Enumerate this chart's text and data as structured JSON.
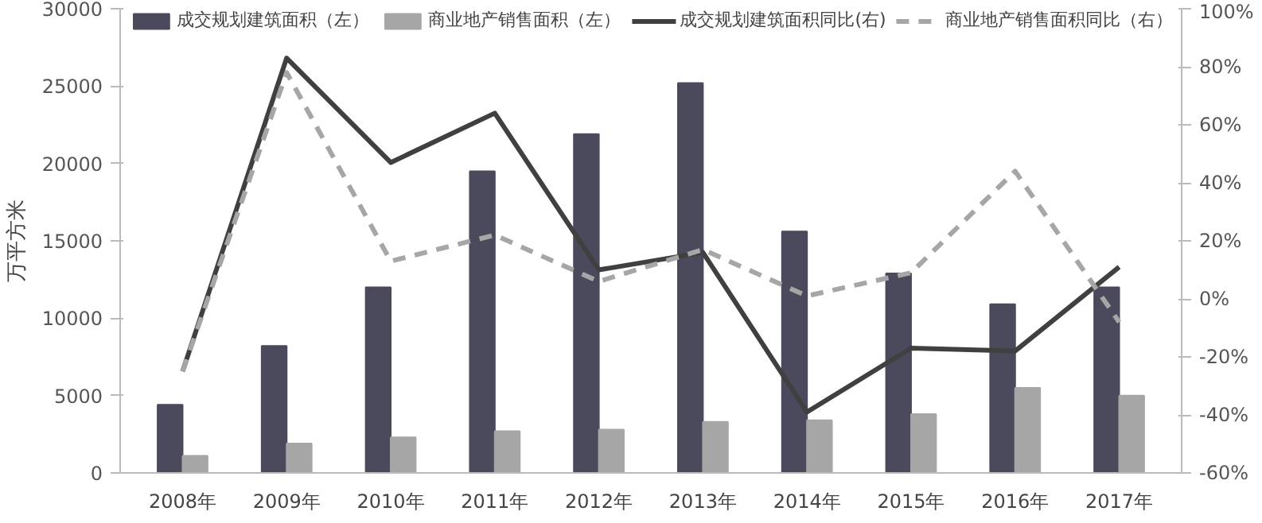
{
  "chart_data": {
    "type": "bar",
    "categories": [
      "2008年",
      "2009年",
      "2010年",
      "2011年",
      "2012年",
      "2013年",
      "2014年",
      "2015年",
      "2016年",
      "2017年"
    ],
    "ylabel": "万平方米",
    "ylim": [
      0,
      30000
    ],
    "yticks": [
      0,
      5000,
      10000,
      15000,
      20000,
      25000,
      30000
    ],
    "y2lim": [
      -60,
      100
    ],
    "y2ticks": [
      {
        "value": -60,
        "label": "-60%"
      },
      {
        "value": -40,
        "label": "-40%"
      },
      {
        "value": -20,
        "label": "-20%"
      },
      {
        "value": 0,
        "label": "0%"
      },
      {
        "value": 20,
        "label": "20%"
      },
      {
        "value": 40,
        "label": "40%"
      },
      {
        "value": 60,
        "label": "60%"
      },
      {
        "value": 80,
        "label": "80%"
      },
      {
        "value": 100,
        "label": "100%"
      }
    ],
    "grid": false,
    "legend": "top",
    "series": [
      {
        "name": "成交规划建筑面积（左）",
        "color": "#4a4a5c",
        "values": [
          4400,
          8200,
          12000,
          19500,
          21900,
          25200,
          15600,
          12900,
          10900,
          12000
        ]
      },
      {
        "name": "商业地产销售面积（左）",
        "color": "#a6a6a6",
        "values": [
          1100,
          1900,
          2300,
          2700,
          2800,
          3300,
          3400,
          3800,
          5500,
          5000
        ]
      },
      {
        "name": "成交规划建筑面积同比(右)",
        "type": "line",
        "axis": "y2",
        "line_style": "solid",
        "color": "#404040",
        "values": [
          -25,
          83,
          47,
          64,
          10,
          16,
          -39,
          -17,
          -18,
          11
        ]
      },
      {
        "name": "商业地产销售面积同比（右）",
        "type": "line",
        "axis": "y2",
        "line_style": "dashed",
        "color": "#a6a6a6",
        "values": [
          -25,
          78,
          13,
          22,
          6,
          17,
          1,
          9,
          44,
          -8
        ]
      }
    ]
  }
}
